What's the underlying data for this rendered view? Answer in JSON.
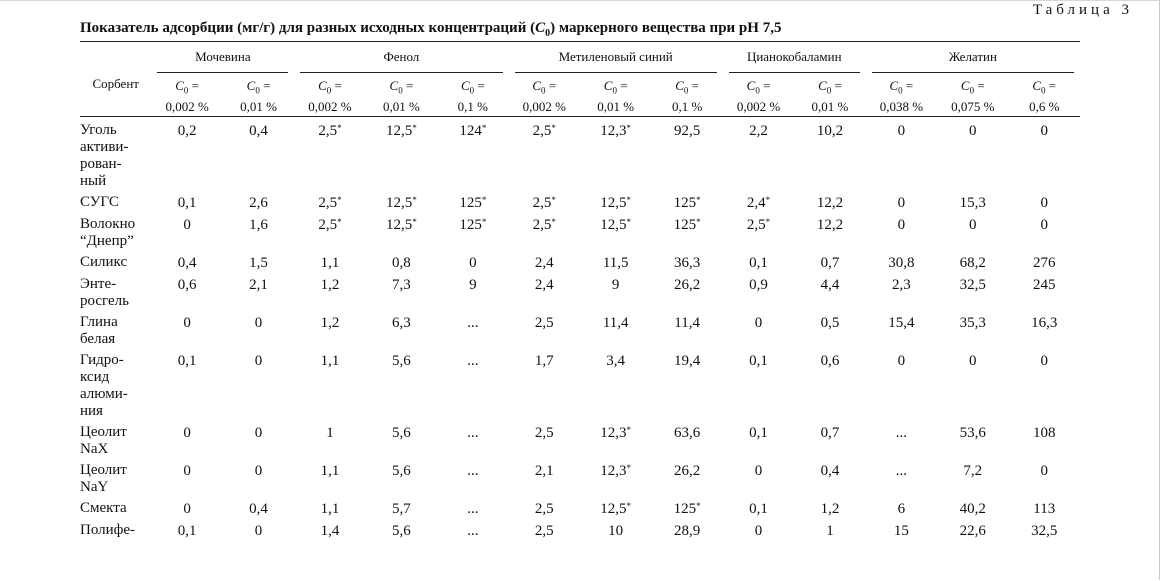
{
  "table_number": "Таблица 3",
  "caption": {
    "before": "Показатель адсорбции (мг/г) для разных исходных концентраций (",
    "symbol": "C",
    "sub": "0",
    "after": ") маркерного вещества при рН 7,5"
  },
  "sorbent_header": "Сорбент",
  "groups": [
    {
      "label": "Мочевина",
      "concentrations": [
        "0,002 %",
        "0,01 %"
      ]
    },
    {
      "label": "Фенол",
      "concentrations": [
        "0,002 %",
        "0,01 %",
        "0,1 %"
      ]
    },
    {
      "label": "Метиленовый синий",
      "concentrations": [
        "0,002 %",
        "0,01 %",
        "0,1 %"
      ]
    },
    {
      "label": "Цианокобаламин",
      "concentrations": [
        "0,002 %",
        "0,01 %"
      ]
    },
    {
      "label": "Желатин",
      "concentrations": [
        "0,038 %",
        "0,075 %",
        "0,6 %"
      ]
    }
  ],
  "conc_prefix": "C",
  "conc_sub": "0",
  "conc_eq": "=",
  "rows": [
    {
      "name": "Уголь активи-\nрован-\nный",
      "values": [
        "0,2",
        "0,4",
        "2,5*",
        "12,5*",
        "124*",
        "2,5*",
        "12,3*",
        "92,5",
        "2,2",
        "10,2",
        "0",
        "0",
        "0"
      ]
    },
    {
      "name": "СУГС",
      "values": [
        "0,1",
        "2,6",
        "2,5*",
        "12,5*",
        "125*",
        "2,5*",
        "12,5*",
        "125*",
        "2,4*",
        "12,2",
        "0",
        "15,3",
        "0"
      ]
    },
    {
      "name": "Волокно\n“Днепр”",
      "values": [
        "0",
        "1,6",
        "2,5*",
        "12,5*",
        "125*",
        "2,5*",
        "12,5*",
        "125*",
        "2,5*",
        "12,2",
        "0",
        "0",
        "0"
      ]
    },
    {
      "name": "Силикс",
      "values": [
        "0,4",
        "1,5",
        "1,1",
        "0,8",
        "0",
        "2,4",
        "11,5",
        "36,3",
        "0,1",
        "0,7",
        "30,8",
        "68,2",
        "276"
      ]
    },
    {
      "name": "Энте-\nросгель",
      "values": [
        "0,6",
        "2,1",
        "1,2",
        "7,3",
        "9",
        "2,4",
        "9",
        "26,2",
        "0,9",
        "4,4",
        "2,3",
        "32,5",
        "245"
      ]
    },
    {
      "name": "Глина\nбелая",
      "values": [
        "0",
        "0",
        "1,2",
        "6,3",
        "...",
        "2,5",
        "11,4",
        "11,4",
        "0",
        "0,5",
        "15,4",
        "35,3",
        "16,3"
      ]
    },
    {
      "name": "Гидро-\nксид\nалюми-\nния",
      "values": [
        "0,1",
        "0",
        "1,1",
        "5,6",
        "...",
        "1,7",
        "3,4",
        "19,4",
        "0,1",
        "0,6",
        "0",
        "0",
        "0"
      ]
    },
    {
      "name": "Цеолит\nNaX",
      "values": [
        "0",
        "0",
        "1",
        "5,6",
        "...",
        "2,5",
        "12,3*",
        "63,6",
        "0,1",
        "0,7",
        "...",
        "53,6",
        "108"
      ]
    },
    {
      "name": "Цеолит\nNaY",
      "values": [
        "0",
        "0",
        "1,1",
        "5,6",
        "...",
        "2,1",
        "12,3*",
        "26,2",
        "0",
        "0,4",
        "...",
        "7,2",
        "0"
      ]
    },
    {
      "name": "Смекта",
      "values": [
        "0",
        "0,4",
        "1,1",
        "5,7",
        "...",
        "2,5",
        "12,5*",
        "125*",
        "0,1",
        "1,2",
        "6",
        "40,2",
        "113"
      ]
    },
    {
      "name": "Полифе-",
      "values": [
        "0,1",
        "0",
        "1,4",
        "5,6",
        "...",
        "2,5",
        "10",
        "28,9",
        "0",
        "1",
        "15",
        "22,6",
        "32,5"
      ]
    }
  ]
}
